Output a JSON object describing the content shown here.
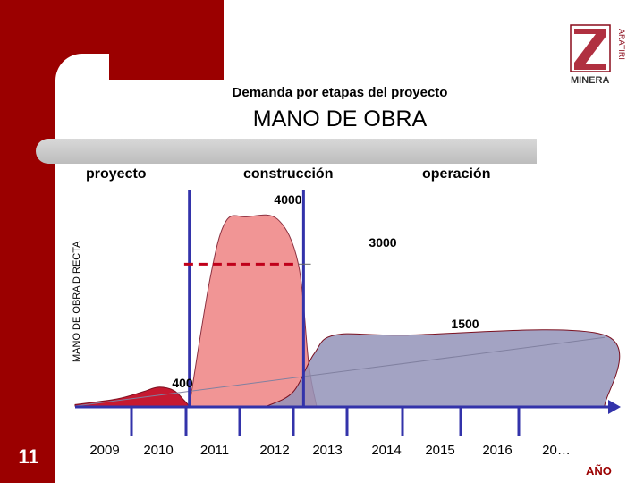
{
  "slide": {
    "subtitle": "Demanda por etapas del proyecto",
    "title": "MANO DE OBRA",
    "number": "11",
    "colors": {
      "brand": "#9b0000",
      "axis": "#3333aa"
    }
  },
  "logo": {
    "letters": "ARATIRI",
    "wordmark": "MINERA"
  },
  "phases": [
    "proyecto",
    "construcción",
    "operación"
  ],
  "chart_data": {
    "type": "area",
    "title": "MANO DE OBRA",
    "xlabel": "AÑO",
    "ylabel": "MANO DE OBRA DIRECTA",
    "categories": [
      "2009",
      "2010",
      "2011",
      "2012",
      "2013",
      "2014",
      "2015",
      "2016",
      "20…"
    ],
    "xlim": [
      2008.7,
      2018.9
    ],
    "ylim": [
      0,
      4500
    ],
    "series": [
      {
        "color": "#c0001a",
        "points": [
          [
            2008.7,
            30
          ],
          [
            2009.5,
            150
          ],
          [
            2010,
            300
          ],
          [
            2010.3,
            400
          ],
          [
            2010.6,
            330
          ],
          [
            2010.8,
            120
          ],
          [
            2010.9,
            0
          ]
        ]
      },
      {
        "color": "#f08a8a",
        "points": [
          [
            2010.9,
            0
          ],
          [
            2011.3,
            2700
          ],
          [
            2011.6,
            3900
          ],
          [
            2012,
            4000
          ],
          [
            2012.6,
            3950
          ],
          [
            2013.0,
            3000
          ],
          [
            2013.2,
            900
          ],
          [
            2013.35,
            0
          ]
        ]
      },
      {
        "color": "#9393b8",
        "points": [
          [
            2012.4,
            0
          ],
          [
            2012.9,
            300
          ],
          [
            2013.3,
            1100
          ],
          [
            2013.7,
            1500
          ],
          [
            2015,
            1500
          ],
          [
            2018.9,
            1500
          ],
          [
            2018.9,
            0
          ]
        ]
      }
    ],
    "trend_line": {
      "color": "#8080a0",
      "points": [
        [
          2008.7,
          0
        ],
        [
          2018.9,
          1450
        ]
      ]
    },
    "reference_line": {
      "value": 3000,
      "from": 2010.8,
      "to": 2013.0,
      "color": "#c0001a"
    },
    "dividers": [
      2010.9,
      2013.1
    ],
    "annotations": [
      {
        "text": "4000",
        "x": 2012.0,
        "y": 4000
      },
      {
        "text": "3000",
        "x": 2013.4,
        "y": 3000
      },
      {
        "text": "1500",
        "x": 2015.1,
        "y": 1500
      },
      {
        "text": "400",
        "x": 2010.2,
        "y": 400
      }
    ]
  }
}
